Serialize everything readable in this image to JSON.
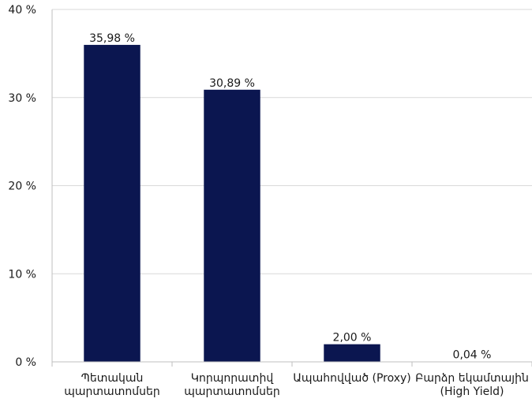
{
  "chart_data": {
    "type": "bar",
    "categories": [
      [
        "Պետական",
        "պարտատոմսեր"
      ],
      [
        "Կորպորատիվ",
        "պարտատոմսեր"
      ],
      [
        "Ապահովված (Proxy)"
      ],
      [
        "Բարձր եկամտային",
        "(High Yield)"
      ]
    ],
    "values": [
      35.98,
      30.89,
      2.0,
      0.04
    ],
    "data_labels": [
      "35,98 %",
      "30,89 %",
      "2,00 %",
      "0,04 %"
    ],
    "ylim": [
      0,
      40
    ],
    "y_ticks": [
      0,
      10,
      20,
      30,
      40
    ],
    "y_tick_labels": [
      "0 %",
      "10 %",
      "20 %",
      "30 %",
      "40 %"
    ],
    "grid": true,
    "colors": {
      "bar": "#0b1650",
      "grid": "#d9d9d9",
      "axis": "#bfbfbf",
      "text": "#1a1a1a"
    }
  }
}
